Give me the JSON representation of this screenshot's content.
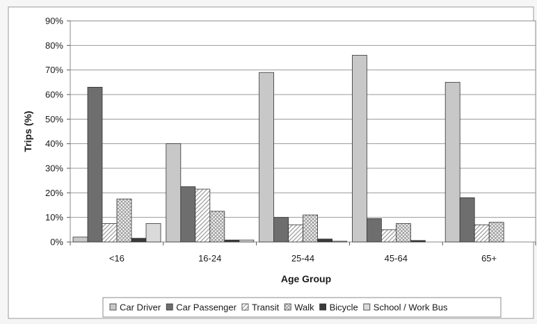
{
  "chart_data": {
    "type": "bar",
    "title": "",
    "xlabel": "Age Group",
    "ylabel": "Trips (%)",
    "ylim": [
      0,
      90
    ],
    "yticks": [
      "0%",
      "10%",
      "20%",
      "30%",
      "40%",
      "50%",
      "60%",
      "70%",
      "80%",
      "90%"
    ],
    "categories": [
      "<16",
      "16-24",
      "25-44",
      "45-64",
      "65+"
    ],
    "grid": "horizontal",
    "legend_position": "bottom",
    "series": [
      {
        "name": "Car Driver",
        "values": [
          2,
          40,
          69,
          76,
          65
        ],
        "color": "#c8c8c8",
        "pattern": "solid"
      },
      {
        "name": "Car Passenger",
        "values": [
          63,
          22.5,
          10,
          9.5,
          18
        ],
        "color": "#6e6e6e",
        "pattern": "solid"
      },
      {
        "name": "Transit",
        "values": [
          7.5,
          21.5,
          7,
          5,
          7
        ],
        "color": "#ffffff",
        "pattern": "diagonal"
      },
      {
        "name": "Walk",
        "values": [
          17.5,
          12.5,
          11,
          7.5,
          8
        ],
        "color": "#e6e6e6",
        "pattern": "cross"
      },
      {
        "name": "Bicycle",
        "values": [
          1.5,
          0.8,
          1.2,
          0.6,
          0
        ],
        "color": "#3a3a3a",
        "pattern": "solid"
      },
      {
        "name": "School / Work Bus",
        "values": [
          7.5,
          0.8,
          0.3,
          0,
          0
        ],
        "color": "#dadada",
        "pattern": "solid"
      }
    ]
  }
}
